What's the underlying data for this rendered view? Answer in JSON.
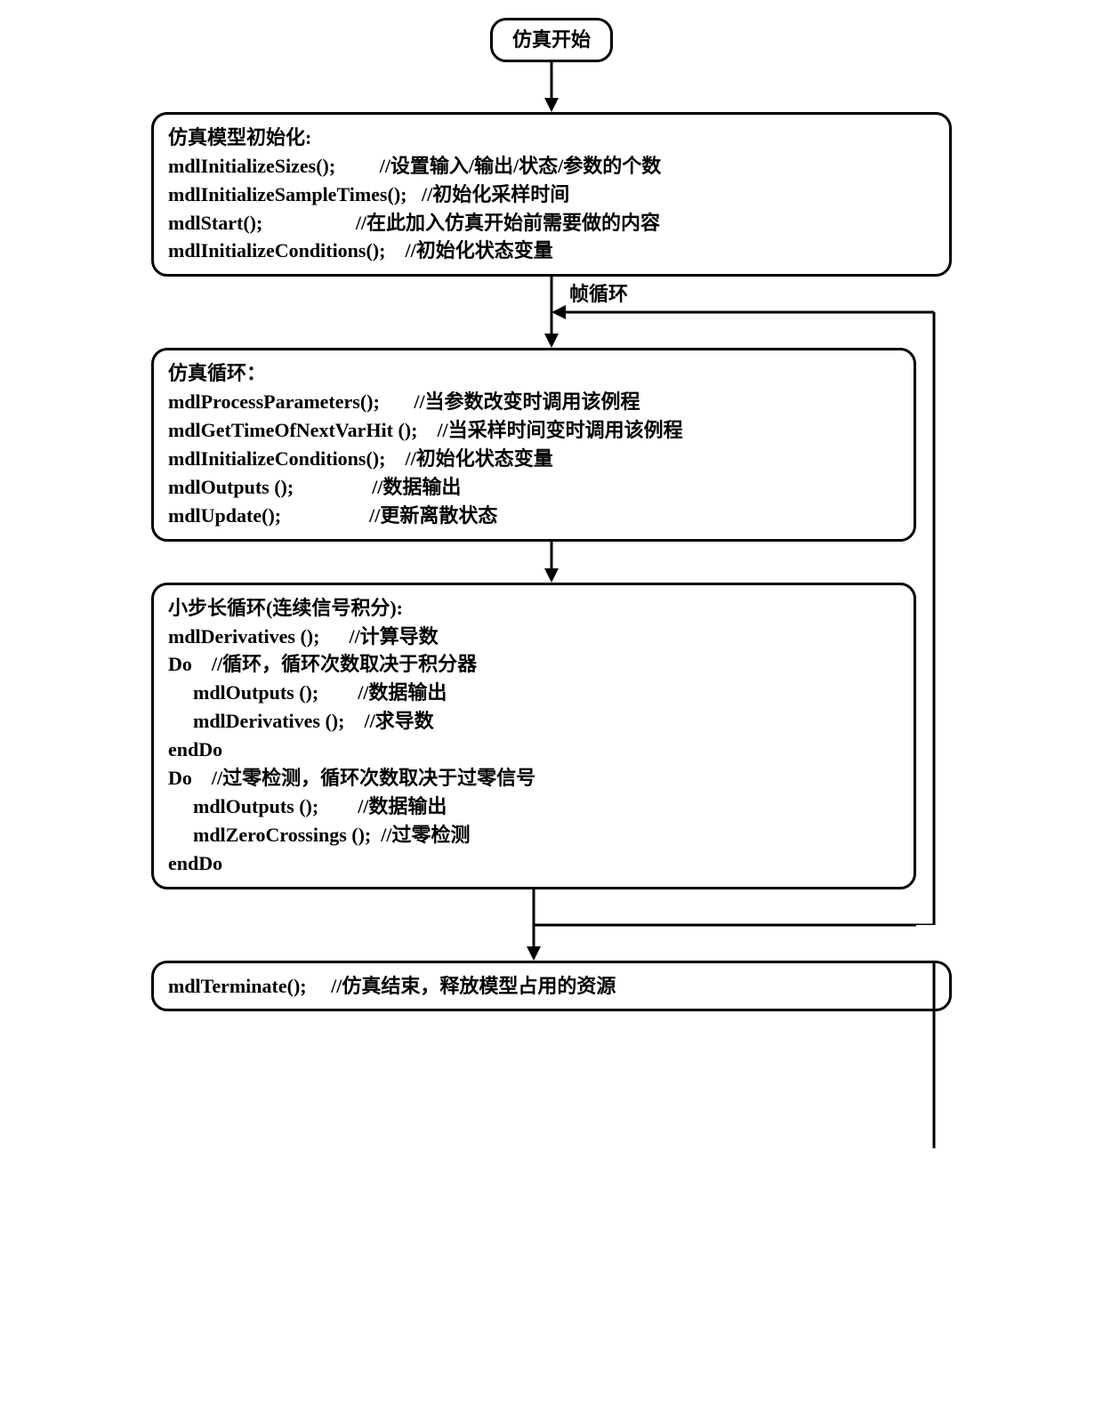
{
  "colors": {
    "border": "#000000",
    "background": "#ffffff",
    "text": "#000000"
  },
  "typography": {
    "font_family": "SimSun",
    "font_size_pt": 16,
    "font_weight": "bold"
  },
  "layout": {
    "node_border_width": 3,
    "node_border_radius": 18,
    "arrow_stroke_width": 3
  },
  "start": {
    "label": "仿真开始"
  },
  "loop_label": "帧循环",
  "box1": {
    "title": "仿真模型初始化:",
    "lines": [
      {
        "fn": "mdlInitializeSizes();",
        "cm": "//设置输入/输出/状态/参数的个数"
      },
      {
        "fn": "mdlInitializeSampleTimes();",
        "cm": "//初始化采样时间"
      },
      {
        "fn": "mdlStart();",
        "cm": "//在此加入仿真开始前需要做的内容"
      },
      {
        "fn": "mdlInitializeConditions();",
        "cm": "//初始化状态变量"
      }
    ],
    "col_fn_width_ch": 30
  },
  "box2": {
    "title": "仿真循环：",
    "lines": [
      {
        "fn": "mdlProcessParameters();",
        "cm": "//当参数改变时调用该例程"
      },
      {
        "fn": "mdlGetTimeOfNextVarHit ();",
        "cm": "//当采样时间变时调用该例程"
      },
      {
        "fn": "mdlInitializeConditions();",
        "cm": "//初始化状态变量"
      },
      {
        "fn": "mdlOutputs ();",
        "cm": "//数据输出"
      },
      {
        "fn": "mdlUpdate();",
        "cm": "//更新离散状态"
      }
    ],
    "col_fn_width_ch": 30
  },
  "box3": {
    "title": "小步长循环(连续信号积分):",
    "lines": [
      {
        "fn": "mdlDerivatives ();",
        "cm": "//计算导数",
        "indent": 0
      },
      {
        "fn": "Do",
        "cm": "//循环，循环次数取决于积分器",
        "indent": 0,
        "inline_gap": 4
      },
      {
        "fn": "mdlOutputs ();",
        "cm": "//数据输出",
        "indent": 1
      },
      {
        "fn": "mdlDerivatives ();",
        "cm": "//求导数",
        "indent": 1
      },
      {
        "fn": "endDo",
        "cm": "",
        "indent": 0
      },
      {
        "fn": "Do",
        "cm": "//过零检测，循环次数取决于过零信号",
        "indent": 0,
        "inline_gap": 4
      },
      {
        "fn": "mdlOutputs ();",
        "cm": "//数据输出",
        "indent": 1
      },
      {
        "fn": "mdlZeroCrossings ();",
        "cm": "//过零检测",
        "indent": 1
      },
      {
        "fn": "endDo",
        "cm": "",
        "indent": 0
      }
    ],
    "col_fn_width_ch": 24
  },
  "box4": {
    "lines": [
      {
        "fn": "mdlTerminate();",
        "cm": "//仿真结束，释放模型占用的资源"
      }
    ],
    "col_fn_width_ch": 20
  }
}
